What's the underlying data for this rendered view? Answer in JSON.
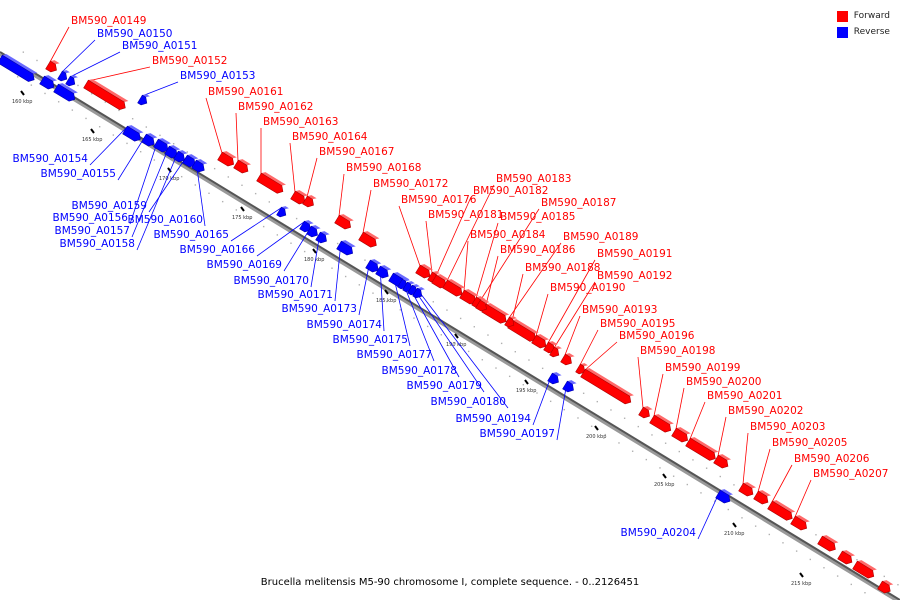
{
  "legend": {
    "forward_label": "Forward",
    "reverse_label": "Reverse",
    "forward_color": "#ff0000",
    "reverse_color": "#0000ff"
  },
  "caption": "Brucella melitensis M5-90 chromosome I, complete sequence. - 0..2126451",
  "ticks": [
    "160 kbp",
    "165 kbp",
    "170 kbp",
    "175 kbp",
    "180 kbp",
    "185 kbp",
    "190 kbp",
    "195 kbp",
    "200 kbp",
    "205 kbp",
    "210 kbp",
    "215 kbp"
  ],
  "genes": [
    {
      "id": "BM590_A0149",
      "strand": "forward"
    },
    {
      "id": "BM590_A0150",
      "strand": "reverse"
    },
    {
      "id": "BM590_A0151",
      "strand": "reverse"
    },
    {
      "id": "BM590_A0152",
      "strand": "forward"
    },
    {
      "id": "BM590_A0153",
      "strand": "reverse"
    },
    {
      "id": "BM590_A0154",
      "strand": "reverse"
    },
    {
      "id": "BM590_A0155",
      "strand": "reverse"
    },
    {
      "id": "BM590_A0156",
      "strand": "reverse"
    },
    {
      "id": "BM590_A0157",
      "strand": "reverse"
    },
    {
      "id": "BM590_A0158",
      "strand": "reverse"
    },
    {
      "id": "BM590_A0159",
      "strand": "reverse"
    },
    {
      "id": "BM590_A0160",
      "strand": "reverse"
    },
    {
      "id": "BM590_A0161",
      "strand": "forward"
    },
    {
      "id": "BM590_A0162",
      "strand": "forward"
    },
    {
      "id": "BM590_A0163",
      "strand": "forward"
    },
    {
      "id": "BM590_A0164",
      "strand": "forward"
    },
    {
      "id": "BM590_A0165",
      "strand": "reverse"
    },
    {
      "id": "BM590_A0166",
      "strand": "reverse"
    },
    {
      "id": "BM590_A0167",
      "strand": "forward"
    },
    {
      "id": "BM590_A0168",
      "strand": "forward"
    },
    {
      "id": "BM590_A0169",
      "strand": "reverse"
    },
    {
      "id": "BM590_A0170",
      "strand": "reverse"
    },
    {
      "id": "BM590_A0171",
      "strand": "reverse"
    },
    {
      "id": "BM590_A0172",
      "strand": "forward"
    },
    {
      "id": "BM590_A0173",
      "strand": "reverse"
    },
    {
      "id": "BM590_A0174",
      "strand": "reverse"
    },
    {
      "id": "BM590_A0175",
      "strand": "reverse"
    },
    {
      "id": "BM590_A0176",
      "strand": "forward"
    },
    {
      "id": "BM590_A0177",
      "strand": "reverse"
    },
    {
      "id": "BM590_A0178",
      "strand": "reverse"
    },
    {
      "id": "BM590_A0179",
      "strand": "reverse"
    },
    {
      "id": "BM590_A0180",
      "strand": "reverse"
    },
    {
      "id": "BM590_A0181",
      "strand": "forward"
    },
    {
      "id": "BM590_A0182",
      "strand": "forward"
    },
    {
      "id": "BM590_A0183",
      "strand": "forward"
    },
    {
      "id": "BM590_A0184",
      "strand": "forward"
    },
    {
      "id": "BM590_A0185",
      "strand": "forward"
    },
    {
      "id": "BM590_A0186",
      "strand": "forward"
    },
    {
      "id": "BM590_A0187",
      "strand": "forward"
    },
    {
      "id": "BM590_A0188",
      "strand": "forward"
    },
    {
      "id": "BM590_A0189",
      "strand": "forward"
    },
    {
      "id": "BM590_A0190",
      "strand": "forward"
    },
    {
      "id": "BM590_A0191",
      "strand": "forward"
    },
    {
      "id": "BM590_A0192",
      "strand": "forward"
    },
    {
      "id": "BM590_A0193",
      "strand": "forward"
    },
    {
      "id": "BM590_A0194",
      "strand": "reverse"
    },
    {
      "id": "BM590_A0195",
      "strand": "forward"
    },
    {
      "id": "BM590_A0196",
      "strand": "forward"
    },
    {
      "id": "BM590_A0197",
      "strand": "reverse"
    },
    {
      "id": "BM590_A0198",
      "strand": "forward"
    },
    {
      "id": "BM590_A0199",
      "strand": "forward"
    },
    {
      "id": "BM590_A0200",
      "strand": "forward"
    },
    {
      "id": "BM590_A0201",
      "strand": "forward"
    },
    {
      "id": "BM590_A0202",
      "strand": "forward"
    },
    {
      "id": "BM590_A0203",
      "strand": "forward"
    },
    {
      "id": "BM590_A0204",
      "strand": "reverse"
    },
    {
      "id": "BM590_A0205",
      "strand": "forward"
    },
    {
      "id": "BM590_A0206",
      "strand": "forward"
    },
    {
      "id": "BM590_A0207",
      "strand": "forward"
    }
  ]
}
